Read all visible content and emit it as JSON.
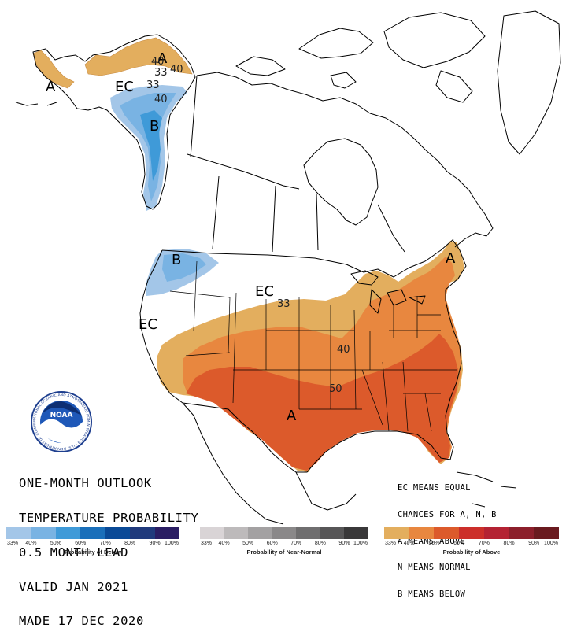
{
  "map": {
    "regions": [
      {
        "key": "ak_above",
        "label": "A",
        "category": "above"
      },
      {
        "key": "ak_above_west",
        "label": "A",
        "category": "above"
      },
      {
        "key": "ak_ec",
        "label": "EC",
        "category": "equal_chances"
      },
      {
        "key": "ak_below",
        "label": "B",
        "category": "below"
      },
      {
        "key": "pnw_below",
        "label": "B",
        "category": "below"
      },
      {
        "key": "north_ec",
        "label": "EC",
        "category": "equal_chances"
      },
      {
        "key": "west_ec",
        "label": "EC",
        "category": "equal_chances"
      },
      {
        "key": "south_above",
        "label": "A",
        "category": "above"
      },
      {
        "key": "ne_above",
        "label": "A",
        "category": "above"
      }
    ],
    "contour_labels": [
      {
        "key": "ak_40",
        "text": "40"
      },
      {
        "key": "ak_40b",
        "text": "40"
      },
      {
        "key": "ak_33a",
        "text": "33"
      },
      {
        "key": "ak_33b",
        "text": "33"
      },
      {
        "key": "ak_b40",
        "text": "40"
      },
      {
        "key": "conus_33",
        "text": "33"
      },
      {
        "key": "conus_40",
        "text": "40"
      },
      {
        "key": "conus_50",
        "text": "50"
      }
    ]
  },
  "title_lines": [
    "ONE-MONTH OUTLOOK",
    "TEMPERATURE PROBABILITY",
    "0.5 MONTH LEAD",
    "VALID JAN 2021",
    "MADE 17 DEC 2020"
  ],
  "key_lines": [
    "EC MEANS EQUAL",
    "CHANCES FOR A, N, B",
    "A MEANS ABOVE",
    "N MEANS NORMAL",
    "B MEANS BELOW"
  ],
  "logo": {
    "text": "NOAA",
    "ring_text": "NATIONAL OCEANIC AND ATMOSPHERIC ADMINISTRATION · U.S. DEPARTMENT OF COMMERCE"
  },
  "legends": [
    {
      "key": "below",
      "caption": "Probability of Below",
      "ticks": [
        "33%",
        "40%",
        "50%",
        "60%",
        "70%",
        "80%",
        "90%",
        "100%"
      ],
      "colors": [
        "#a3c6e8",
        "#79b3e3",
        "#3f9ad8",
        "#1a6fba",
        "#0a4a97",
        "#203a7c",
        "#2a1d63"
      ]
    },
    {
      "key": "normal",
      "caption": "Probability of Near-Normal",
      "ticks": [
        "33%",
        "40%",
        "50%",
        "60%",
        "70%",
        "80%",
        "90%",
        "100%"
      ],
      "colors": [
        "#d9d4d6",
        "#bdbabb",
        "#a3a1a2",
        "#8a8889",
        "#6f6e6f",
        "#575657",
        "#393839"
      ]
    },
    {
      "key": "above",
      "caption": "Probability of Above",
      "ticks": [
        "33%",
        "40%",
        "50%",
        "60%",
        "70%",
        "80%",
        "90%",
        "100%"
      ],
      "colors": [
        "#e3ae5e",
        "#e8873f",
        "#dc5a2b",
        "#cc2f2a",
        "#b42233",
        "#8c1f2b",
        "#6a1a1f"
      ]
    }
  ],
  "colors": {
    "above_33": "#e3ae5e",
    "above_40": "#e8873f",
    "above_50": "#dc5a2b",
    "below_33": "#a3c6e8",
    "below_40": "#79b3e3",
    "below_50": "#3f9ad8",
    "land": "#ffffff",
    "lines": "#000000"
  }
}
